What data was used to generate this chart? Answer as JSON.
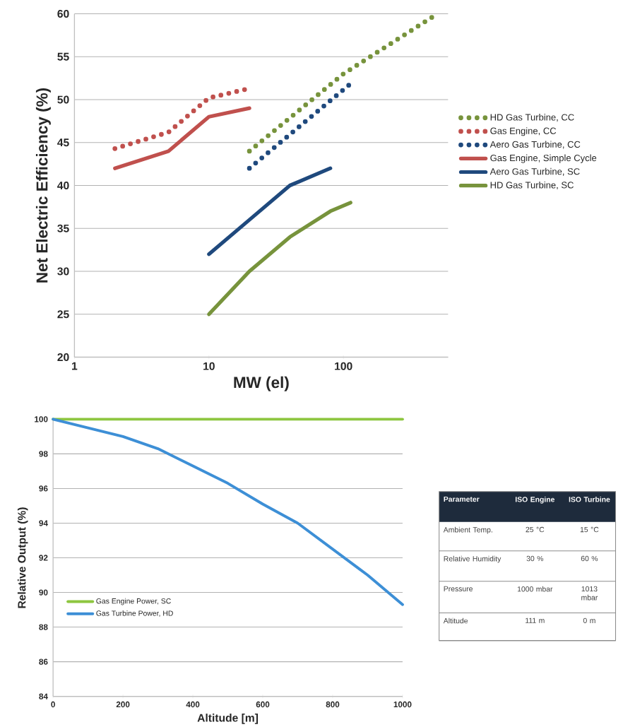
{
  "chart_data": [
    {
      "type": "line",
      "xlabel": "MW (el)",
      "ylabel": "Net Electric Efficiency (%)",
      "log": "x",
      "xlim": [
        1,
        600
      ],
      "xticks": [
        1,
        10,
        100
      ],
      "ylim": [
        20,
        60
      ],
      "yticks": [
        20,
        25,
        30,
        35,
        40,
        45,
        50,
        55,
        60
      ],
      "grid": "y",
      "legend": "right",
      "marker": "none",
      "series": [
        {
          "name": "HD Gas Turbine, CC",
          "color": "#77933c",
          "line_style": "dotted",
          "x": [
            20,
            100,
            500
          ],
          "values": [
            44,
            53,
            60
          ]
        },
        {
          "name": "Gas Engine, CC",
          "color": "#c0504d",
          "line_style": "dotted",
          "x": [
            2,
            5,
            10,
            20
          ],
          "values": [
            44.3,
            46.2,
            50.2,
            51.3
          ]
        },
        {
          "name": "Aero Gas Turbine, CC",
          "color": "#1f497d",
          "line_style": "dotted",
          "x": [
            20,
            110
          ],
          "values": [
            42,
            51.7
          ]
        },
        {
          "name": "Gas Engine, Simple Cycle",
          "color": "#c0504d",
          "line_style": "solid",
          "x": [
            2,
            5,
            10,
            20
          ],
          "values": [
            42,
            44,
            48,
            49
          ]
        },
        {
          "name": "Aero Gas Turbine, SC",
          "color": "#1f497d",
          "line_style": "solid",
          "x": [
            10,
            20,
            40,
            80
          ],
          "values": [
            32,
            36,
            40,
            42
          ]
        },
        {
          "name": "HD Gas Turbine, SC",
          "color": "#77933c",
          "line_style": "solid",
          "x": [
            10,
            20,
            40,
            80,
            113
          ],
          "values": [
            25,
            30,
            34,
            37,
            38
          ]
        }
      ]
    },
    {
      "type": "line",
      "xlabel": "Altitude [m]",
      "ylabel": "Relative Output (%)",
      "xlim": [
        0,
        1000
      ],
      "xticks": [
        0,
        200,
        400,
        600,
        800,
        1000
      ],
      "ylim": [
        84,
        100
      ],
      "yticks": [
        84,
        86,
        88,
        90,
        92,
        94,
        96,
        98,
        100
      ],
      "grid": "y",
      "legend": "left",
      "marker": "none",
      "series": [
        {
          "name": "Gas Engine Power, SC",
          "color": "#8dc63f",
          "line_style": "solid",
          "x": [
            0,
            1000
          ],
          "values": [
            100,
            100
          ]
        },
        {
          "name": "Gas Turbine Power, HD",
          "color": "#3d8fd6",
          "line_style": "solid",
          "x": [
            0,
            100,
            200,
            300,
            400,
            500,
            600,
            700,
            800,
            900,
            1000
          ],
          "values": [
            100,
            99.5,
            99.0,
            98.3,
            97.3,
            96.3,
            95.1,
            94.0,
            92.5,
            91.0,
            89.3
          ]
        }
      ]
    },
    {
      "type": "other",
      "categories": [
        "Parameter",
        "ISO Engine",
        "ISO Turbine"
      ],
      "y_categories": [
        "Ambient Temp.",
        "Relative Humidity",
        "Pressure",
        "Altitude"
      ],
      "cell_labels": [
        [
          "25 °C",
          "15 °C"
        ],
        [
          "30 %",
          "60 %"
        ],
        [
          "1000 mbar",
          "1013 mbar"
        ],
        [
          "111 m",
          "0 m"
        ]
      ]
    }
  ]
}
